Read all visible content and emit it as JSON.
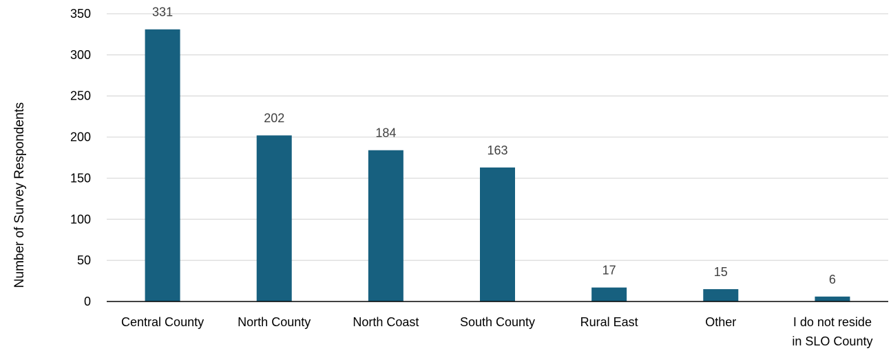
{
  "chart_data": {
    "type": "bar",
    "title": "",
    "xlabel": "",
    "ylabel": "Number of Survey Respondents",
    "categories": [
      [
        "Central County"
      ],
      [
        "North County"
      ],
      [
        "North Coast"
      ],
      [
        "South County"
      ],
      [
        "Rural East"
      ],
      [
        "Other"
      ],
      [
        "I do not reside",
        "in SLO County"
      ]
    ],
    "values": [
      331,
      202,
      184,
      163,
      17,
      15,
      6
    ],
    "data_labels": [
      "331",
      "202",
      "184",
      "163",
      "17",
      "15",
      "6"
    ],
    "ylim": [
      0,
      350
    ],
    "yticks": [
      0,
      50,
      100,
      150,
      200,
      250,
      300,
      350
    ],
    "grid": true,
    "legend": "none",
    "colors": {
      "bar": "#17607f",
      "grid": "#d9d9d9",
      "axis": "#000000",
      "text": "#000000",
      "data_label": "#404040"
    }
  }
}
